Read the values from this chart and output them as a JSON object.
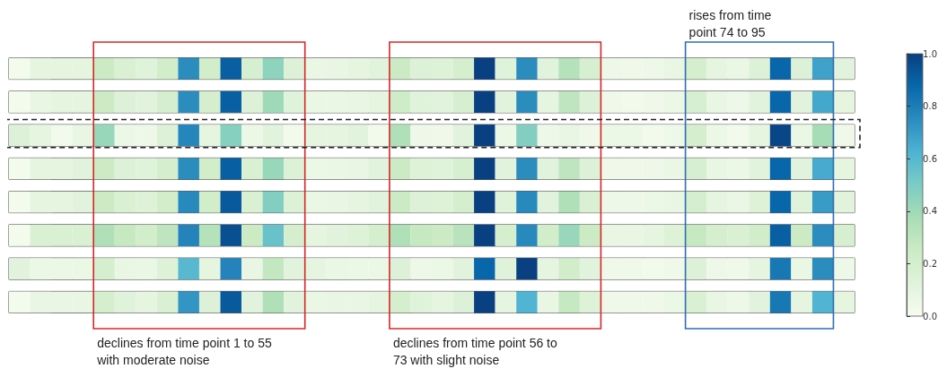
{
  "chart_data": {
    "type": "heatmap",
    "categories": [
      null,
      null,
      null,
      null,
      null,
      null,
      null,
      null,
      null,
      null,
      null,
      null,
      null,
      null,
      null,
      null,
      null,
      null,
      null,
      null,
      null,
      null,
      null,
      null,
      null,
      null,
      null,
      null,
      null,
      null,
      null,
      null,
      null,
      null,
      null,
      null,
      null,
      null,
      null,
      null
    ],
    "y_categories": [
      null,
      null,
      null,
      null,
      null,
      null,
      null,
      null
    ],
    "cells": [
      [
        0.02,
        0.1,
        0.1,
        0.1,
        0.25,
        0.17,
        0.13,
        0.22,
        0.75,
        0.22,
        0.9,
        0.18,
        0.45,
        0.15,
        0.07,
        0.08,
        0.1,
        0.12,
        0.25,
        0.15,
        0.14,
        0.2,
        1.0,
        0.13,
        0.75,
        0.12,
        0.33,
        0.18,
        0.05,
        0.04,
        0.05,
        0.08,
        0.2,
        0.1,
        0.07,
        0.15,
        0.88,
        0.15,
        0.68,
        0.12
      ],
      [
        0.02,
        0.08,
        0.1,
        0.1,
        0.25,
        0.15,
        0.12,
        0.2,
        0.75,
        0.2,
        0.9,
        0.15,
        0.4,
        0.13,
        0.07,
        0.07,
        0.08,
        0.1,
        0.23,
        0.13,
        0.12,
        0.18,
        1.0,
        0.12,
        0.75,
        0.1,
        0.3,
        0.15,
        0.04,
        0.03,
        0.04,
        0.06,
        0.18,
        0.08,
        0.05,
        0.12,
        0.88,
        0.12,
        0.66,
        0.1
      ],
      [
        0.15,
        0.1,
        0.03,
        0.08,
        0.42,
        0.06,
        0.05,
        0.15,
        0.77,
        0.1,
        0.47,
        0.06,
        0.12,
        0.03,
        0.1,
        0.1,
        0.12,
        0.03,
        0.35,
        0.05,
        0.04,
        0.12,
        1.0,
        0.06,
        0.48,
        0.05,
        0.08,
        0.04,
        0.06,
        0.06,
        0.03,
        0.05,
        0.2,
        0.06,
        0.03,
        0.1,
        0.98,
        0.07,
        0.38,
        0.04
      ],
      [
        0.02,
        0.1,
        0.1,
        0.12,
        0.25,
        0.15,
        0.13,
        0.2,
        0.75,
        0.22,
        0.9,
        0.17,
        0.42,
        0.15,
        0.06,
        0.07,
        0.08,
        0.12,
        0.25,
        0.14,
        0.13,
        0.19,
        1.0,
        0.12,
        0.75,
        0.12,
        0.3,
        0.15,
        0.04,
        0.04,
        0.05,
        0.07,
        0.18,
        0.08,
        0.06,
        0.12,
        0.88,
        0.12,
        0.65,
        0.1
      ],
      [
        0.02,
        0.1,
        0.1,
        0.12,
        0.25,
        0.17,
        0.14,
        0.22,
        0.76,
        0.22,
        0.92,
        0.17,
        0.48,
        0.15,
        0.07,
        0.08,
        0.1,
        0.12,
        0.25,
        0.15,
        0.14,
        0.2,
        1.0,
        0.13,
        0.76,
        0.12,
        0.35,
        0.17,
        0.05,
        0.05,
        0.06,
        0.08,
        0.2,
        0.1,
        0.07,
        0.14,
        0.88,
        0.13,
        0.7,
        0.12
      ],
      [
        0.02,
        0.17,
        0.17,
        0.17,
        0.35,
        0.27,
        0.22,
        0.3,
        0.78,
        0.33,
        0.95,
        0.25,
        0.55,
        0.2,
        0.1,
        0.12,
        0.14,
        0.2,
        0.35,
        0.27,
        0.25,
        0.32,
        1.0,
        0.2,
        0.76,
        0.22,
        0.42,
        0.25,
        0.08,
        0.08,
        0.1,
        0.14,
        0.27,
        0.2,
        0.17,
        0.22,
        0.9,
        0.25,
        0.75,
        0.18
      ],
      [
        0.12,
        0.06,
        0.06,
        0.06,
        0.2,
        0.08,
        0.07,
        0.14,
        0.6,
        0.1,
        0.78,
        0.08,
        0.28,
        0.12,
        0.1,
        0.07,
        0.06,
        0.06,
        0.15,
        0.05,
        0.06,
        0.12,
        0.88,
        0.13,
        1.0,
        0.1,
        0.22,
        0.12,
        0.04,
        0.04,
        0.03,
        0.04,
        0.15,
        0.05,
        0.04,
        0.1,
        0.82,
        0.07,
        0.75,
        0.05
      ],
      [
        0.02,
        0.08,
        0.08,
        0.08,
        0.2,
        0.13,
        0.1,
        0.17,
        0.72,
        0.15,
        0.92,
        0.12,
        0.35,
        0.12,
        0.07,
        0.08,
        0.08,
        0.1,
        0.2,
        0.13,
        0.1,
        0.15,
        1.0,
        0.1,
        0.62,
        0.08,
        0.27,
        0.14,
        0.04,
        0.04,
        0.04,
        0.06,
        0.17,
        0.08,
        0.05,
        0.12,
        0.82,
        0.1,
        0.62,
        0.1
      ]
    ],
    "clim": [
      0,
      1
    ],
    "cticks": [
      {
        "value": 0,
        "label": "0.0"
      },
      {
        "value": 0.2,
        "label": "0.2"
      },
      {
        "value": 0.4,
        "label": "0.4"
      },
      {
        "value": 0.6,
        "label": "0.6"
      },
      {
        "value": 0.8,
        "label": "0.8"
      },
      {
        "value": 1,
        "label": "1.0"
      }
    ],
    "tick_labels": false,
    "annotations": [
      "declines from time point 1 to 55 with moderate noise",
      "declines from time point 56 to 73 with slight noise",
      "rises from time point 74 to 95"
    ]
  }
}
